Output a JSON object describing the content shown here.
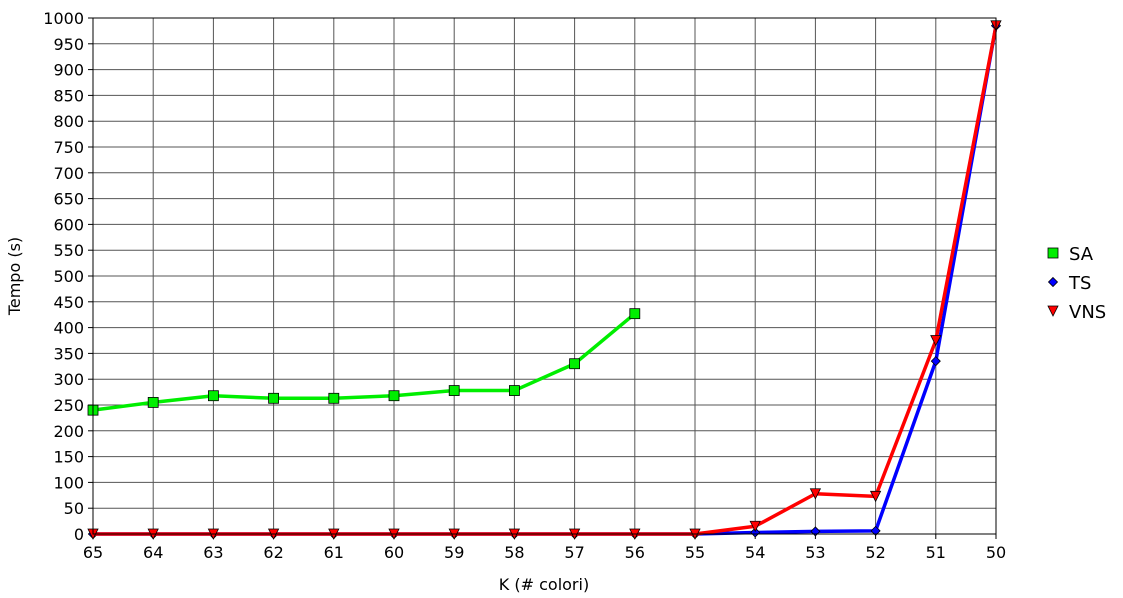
{
  "chart_data": {
    "type": "line",
    "xlabel": "K (# colori)",
    "ylabel": "Tempo (s)",
    "categories": [
      "65",
      "64",
      "63",
      "62",
      "61",
      "60",
      "59",
      "58",
      "57",
      "56",
      "55",
      "54",
      "53",
      "52",
      "51",
      "50"
    ],
    "ylim": [
      0,
      1000
    ],
    "ytick_step": 50,
    "grid": true,
    "legend_position": "right",
    "series": [
      {
        "name": "SA",
        "color": "#00ee00",
        "marker": "square",
        "values": [
          240,
          255,
          268,
          263,
          263,
          268,
          278,
          278,
          330,
          427,
          null,
          null,
          null,
          null,
          null,
          null
        ]
      },
      {
        "name": "TS",
        "color": "#0000ff",
        "marker": "diamond",
        "values": [
          0,
          0,
          0,
          0,
          0,
          0,
          0,
          0,
          0,
          0,
          0,
          3,
          5,
          6,
          335,
          985
        ]
      },
      {
        "name": "VNS",
        "color": "#ff0000",
        "marker": "triangle-down",
        "values": [
          0,
          0,
          0,
          0,
          0,
          0,
          0,
          0,
          0,
          0,
          0,
          15,
          78,
          73,
          375,
          985
        ]
      }
    ]
  }
}
